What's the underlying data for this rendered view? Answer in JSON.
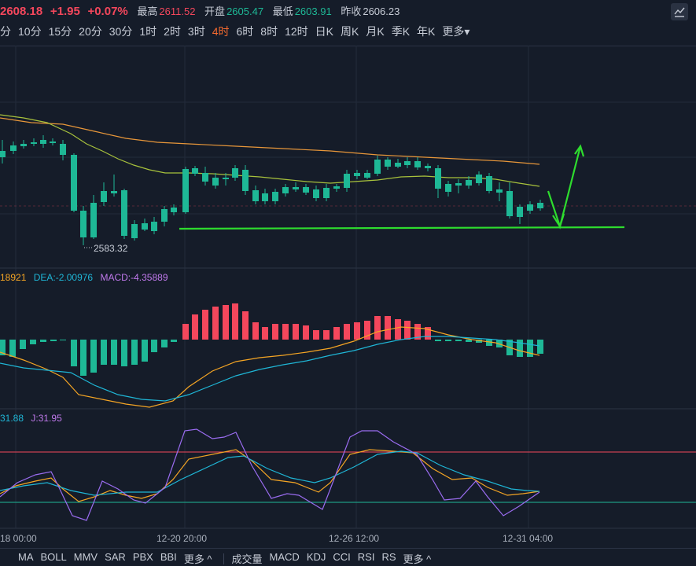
{
  "quote": {
    "price": "2608.18",
    "change": "+1.95",
    "change_pct": "+0.07%",
    "high_label": "最高",
    "high": "2611.52",
    "open_label": "开盘",
    "open": "2605.47",
    "low_label": "最低",
    "low": "2603.91",
    "prev_label": "昨收",
    "prev": "2606.23"
  },
  "period_tabs": [
    "分",
    "10分",
    "15分",
    "20分",
    "30分",
    "1时",
    "2时",
    "3时",
    "4时",
    "6时",
    "8时",
    "12时",
    "日K",
    "周K",
    "月K",
    "季K",
    "年K",
    "更多▾"
  ],
  "active_tab": "4时",
  "annotations": {
    "min_price": "2583.32"
  },
  "macd_legend": {
    "dif": "18921",
    "dea": "DEA:-2.00976",
    "macd": "MACD:-4.35889"
  },
  "kdj_legend": {
    "d": "31.88",
    "j": "J:31.95"
  },
  "x_labels": [
    "18 00:00",
    "12-20 20:00",
    "12-26 12:00",
    "12-31 04:00"
  ],
  "indicator_tabs_left": [
    "MA",
    "BOLL",
    "MMV",
    "SAR",
    "PBX",
    "BBI",
    "更多 ^"
  ],
  "indicator_tabs_right": [
    "成交量",
    "MACD",
    "KDJ",
    "CCI",
    "RSI",
    "RS",
    "更多 ^"
  ],
  "colors": {
    "up": "#f4475c",
    "down": "#1eb896",
    "ma1": "#a8c23c",
    "ma2": "#e8973a",
    "arrow": "#2edc2e",
    "dea": "#1fb6d6",
    "dif": "#f5a524",
    "j": "#9a6cf0"
  },
  "icons": {
    "settings": "chart-settings-icon"
  }
}
